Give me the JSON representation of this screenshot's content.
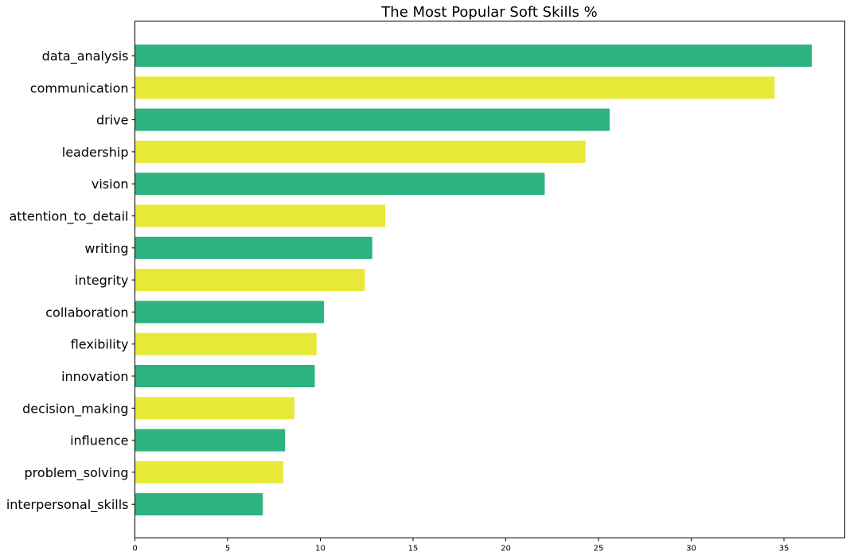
{
  "chart_data": {
    "type": "bar",
    "orientation": "horizontal",
    "title": "The Most Popular Soft Skills %",
    "xlabel": "",
    "ylabel": "",
    "grid": false,
    "xlim": [
      0,
      38.5
    ],
    "xticks": [
      0,
      5,
      10,
      15,
      20,
      25,
      30,
      35
    ],
    "categories": [
      "data_analysis",
      "communication",
      "drive",
      "leadership",
      "vision",
      "attention_to_detail",
      "writing",
      "integrity",
      "collaboration",
      "flexibility",
      "innovation",
      "decision_making",
      "influence",
      "problem_solving",
      "interpersonal_skills"
    ],
    "values": [
      36.5,
      34.5,
      25.6,
      24.3,
      22.1,
      13.5,
      12.8,
      12.4,
      10.2,
      9.8,
      9.7,
      8.6,
      8.1,
      8.0,
      6.9
    ],
    "colors": [
      "#2db37f",
      "#e8e838"
    ]
  }
}
